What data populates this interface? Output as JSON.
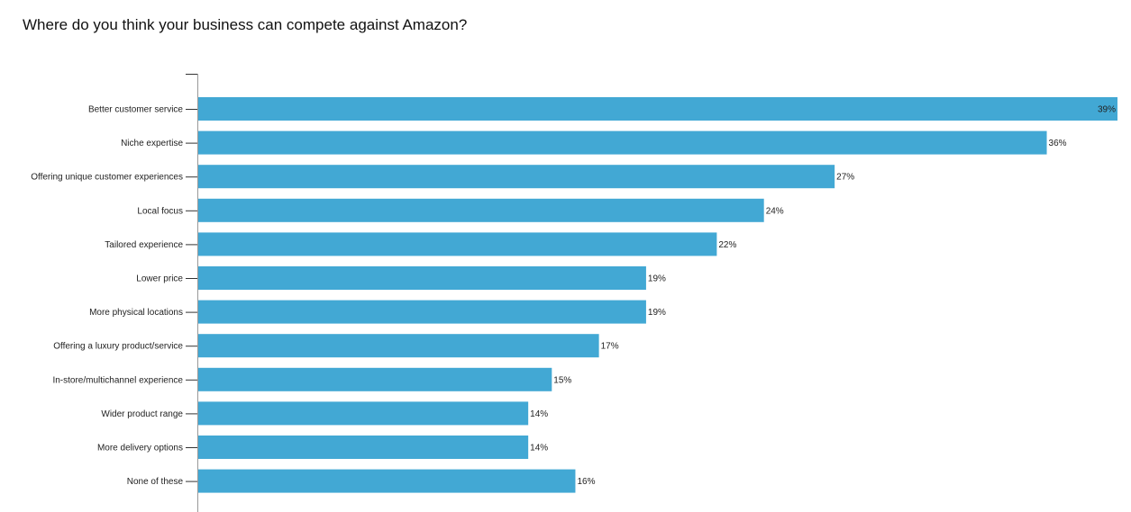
{
  "chart_data": {
    "type": "bar",
    "orientation": "horizontal",
    "title": "Where do you think your business can compete against Amazon?",
    "xlabel": "",
    "ylabel": "",
    "xlim": [
      0,
      39
    ],
    "grid": false,
    "legend": "none",
    "colors": {
      "bar": "#42a8d4",
      "axis": "#999999",
      "tick": "#333333"
    },
    "categories": [
      "Better customer service",
      "Niche expertise",
      "Offering unique customer experiences",
      "Local focus",
      "Tailored experience",
      "Lower price",
      "More physical locations",
      "Offering a luxury product/service",
      "In-store/multichannel experience",
      "Wider product range",
      "More delivery options",
      "None of these"
    ],
    "values": [
      39,
      36,
      27,
      24,
      22,
      19,
      19,
      17,
      15,
      14,
      14,
      16
    ],
    "value_labels": [
      "39%",
      "36%",
      "27%",
      "24%",
      "22%",
      "19%",
      "19%",
      "17%",
      "15%",
      "14%",
      "14%",
      "16%"
    ]
  }
}
